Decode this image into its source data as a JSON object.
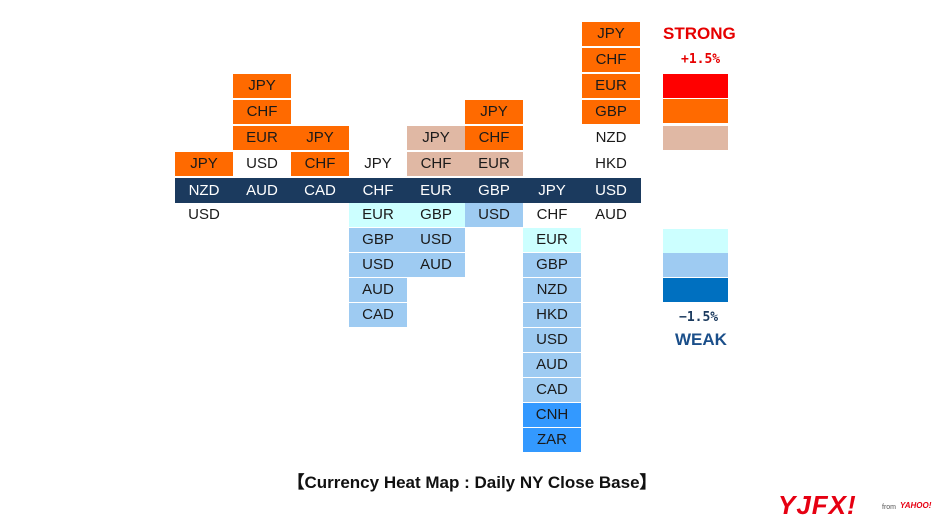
{
  "chart_data": {
    "type": "heatmap",
    "columns": [
      {
        "base": "NZD",
        "stronger": [
          "JPY"
        ],
        "weaker": [
          "USD"
        ]
      },
      {
        "base": "AUD",
        "stronger": [
          "JPY",
          "CHF",
          "EUR",
          "USD"
        ],
        "weaker": []
      },
      {
        "base": "CAD",
        "stronger": [
          "JPY",
          "CHF"
        ],
        "weaker": []
      },
      {
        "base": "CHF",
        "stronger": [
          "JPY"
        ],
        "weaker": [
          "EUR",
          "GBP",
          "USD",
          "AUD",
          "CAD"
        ]
      },
      {
        "base": "EUR",
        "stronger": [
          "JPY",
          "CHF"
        ],
        "weaker": [
          "GBP",
          "USD",
          "AUD"
        ]
      },
      {
        "base": "GBP",
        "stronger": [
          "JPY",
          "CHF",
          "EUR"
        ],
        "weaker": [
          "USD"
        ]
      },
      {
        "base": "JPY",
        "stronger": [],
        "weaker": [
          "CHF",
          "EUR",
          "GBP",
          "NZD",
          "HKD",
          "USD",
          "AUD",
          "CAD",
          "CNH",
          "ZAR"
        ]
      },
      {
        "base": "USD",
        "stronger": [
          "JPY",
          "CHF",
          "EUR",
          "GBP",
          "NZD",
          "HKD"
        ],
        "weaker": [
          "AUD"
        ]
      }
    ],
    "cell_colors": {
      "0": [
        "#ff6a00",
        "#ffffff"
      ],
      "1": [
        "#ff6a00",
        "#ff6a00",
        "#ff6a00",
        "#ffffff"
      ],
      "2": [
        "#ff6a00",
        "#ff6a00"
      ],
      "3": [
        "#ffffff",
        "#ccffff",
        "#9ecbf2",
        "#9ecbf2",
        "#9ecbf2",
        "#9ecbf2"
      ],
      "4": [
        "#e0b8a4",
        "#e0b8a4",
        "#ccffff",
        "#9ecbf2",
        "#9ecbf2"
      ],
      "5": [
        "#ff6a00",
        "#ff6a00",
        "#e0b8a4",
        "#9ecbf2"
      ],
      "6": [
        "#ffffff",
        "#ccffff",
        "#9ecbf2",
        "#9ecbf2",
        "#9ecbf2",
        "#9ecbf2",
        "#9ecbf2",
        "#9ecbf2",
        "#3399ff",
        "#3399ff"
      ],
      "7": [
        "#ff6a00",
        "#ff6a00",
        "#ff6a00",
        "#ff6a00",
        "#ffffff",
        "#ffffff",
        "#ffffff"
      ]
    },
    "legend": {
      "strong_label": "STRONG",
      "strong_value": "+1.5%",
      "weak_label": "WEAK",
      "weak_value": "−1.5%",
      "strong_colors": [
        "#ff0000",
        "#ff6a00",
        "#e0b8a4"
      ],
      "weak_colors": [
        "#ccffff",
        "#9ecbf2",
        "#0070c0"
      ]
    },
    "base_row_color": "#1b3a5e"
  },
  "caption": "【Currency Heat Map : Daily NY Close Base】",
  "logo": {
    "main": "YJFX!",
    "sub": "from",
    "brand": "YAHOO!"
  }
}
